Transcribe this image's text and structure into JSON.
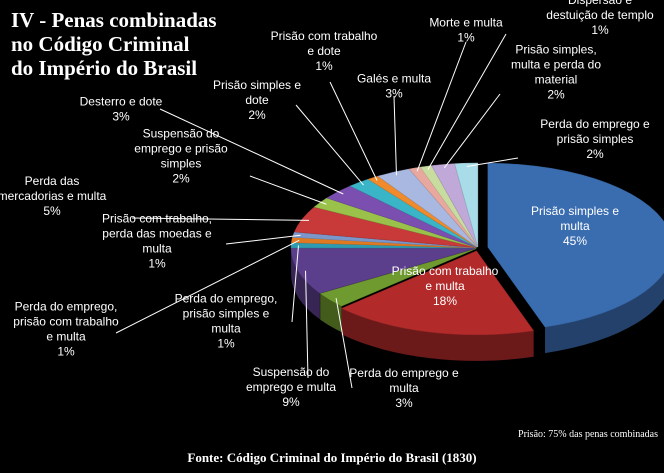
{
  "title_lines": [
    "IV - Penas combinadas",
    "no Código Criminal",
    "do Império do Brasil"
  ],
  "source": "Fonte: Código Criminal do Império do Brasil (1830)",
  "note": "Prisão: 75% das penas combinadas",
  "chart_data": {
    "type": "pie",
    "title": "IV - Penas combinadas no Código Criminal do Império do Brasil",
    "style": "3d-exploded",
    "slices": [
      {
        "label": [
          "Prisão simples e",
          "multa"
        ],
        "value": 45,
        "color": "#3a6db0"
      },
      {
        "label": [
          "Prisão com trabalho",
          "e multa"
        ],
        "value": 18,
        "color": "#b22a2a"
      },
      {
        "label": [
          "Perda do emprego e",
          "multa"
        ],
        "value": 3,
        "color": "#6f9a2f"
      },
      {
        "label": [
          "Suspensão do",
          "emprego e multa"
        ],
        "value": 9,
        "color": "#5c3f8c"
      },
      {
        "label": [
          "Perda do emprego,",
          "prisão simples e",
          "multa"
        ],
        "value": 1,
        "color": "#2e9bb0"
      },
      {
        "label": [
          "Perda do emprego,",
          "prisão com trabalho",
          "e multa"
        ],
        "value": 1,
        "color": "#e07a22"
      },
      {
        "label": [
          "Prisão com trabalho,",
          "perda das moedas e",
          "multa"
        ],
        "value": 1,
        "color": "#7b96c8"
      },
      {
        "label": [
          "Perda das",
          "mercadorias e multa"
        ],
        "value": 5,
        "color": "#c83a3a"
      },
      {
        "label": [
          "Suspensão do",
          "emprego e prisão",
          "simples"
        ],
        "value": 2,
        "color": "#9ac24a"
      },
      {
        "label": [
          "Desterro e dote"
        ],
        "value": 3,
        "color": "#7a4fb0"
      },
      {
        "label": [
          "Prisão simples e",
          "dote"
        ],
        "value": 2,
        "color": "#3ab5c8"
      },
      {
        "label": [
          "Prisão com trabalho",
          "e dote"
        ],
        "value": 1,
        "color": "#f08a2a"
      },
      {
        "label": [
          "Galés e multa"
        ],
        "value": 3,
        "color": "#a8b8e0"
      },
      {
        "label": [
          "Morte e multa"
        ],
        "value": 1,
        "color": "#e8a8a0"
      },
      {
        "label": [
          "Dispersão e",
          "destuição de templo"
        ],
        "value": 1,
        "color": "#c8dca0"
      },
      {
        "label": [
          "Prisão simples,",
          "multa e perda do",
          "material"
        ],
        "value": 2,
        "color": "#c0a8d8"
      },
      {
        "label": [
          "Perda do emprego e",
          "prisão simples"
        ],
        "value": 2,
        "color": "#a8dce8"
      }
    ]
  }
}
